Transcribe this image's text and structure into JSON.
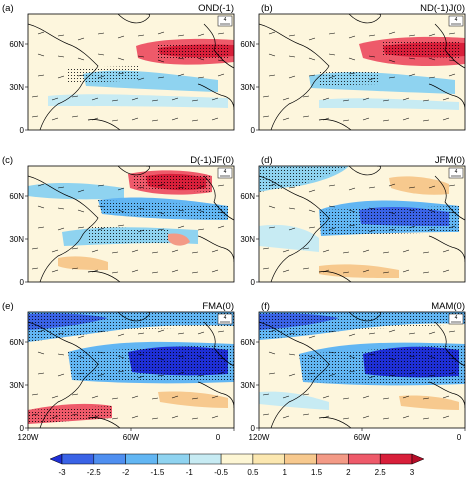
{
  "panels": [
    {
      "letter": "(a)",
      "title": "OND(-1)",
      "vector_ref": "4"
    },
    {
      "letter": "(b)",
      "title": "ND(-1)J(0)",
      "vector_ref": "4"
    },
    {
      "letter": "(c)",
      "title": "D(-1)JF(0)",
      "vector_ref": "4"
    },
    {
      "letter": "(d)",
      "title": "JFM(0)",
      "vector_ref": "4"
    },
    {
      "letter": "(e)",
      "title": "FMA(0)",
      "vector_ref": "4"
    },
    {
      "letter": "(f)",
      "title": "MAM(0)",
      "vector_ref": "4"
    }
  ],
  "y_ticks": [
    "60N",
    "30N",
    "0"
  ],
  "x_ticks": [
    "120W",
    "60W",
    "0"
  ],
  "colorbar": {
    "labels": [
      "-3",
      "-2.5",
      "-2",
      "-1.5",
      "-1",
      "-0.5",
      "0.5",
      "1",
      "1.5",
      "2",
      "2.5",
      "3"
    ],
    "colors": [
      "#1e2fd6",
      "#3a63e6",
      "#4f8ff0",
      "#62b6f3",
      "#8fd3f0",
      "#c7ebf3",
      "#fdf6d4",
      "#fbe7b0",
      "#f7c98e",
      "#f39a86",
      "#ee5a6a",
      "#d81f3a",
      "#b50d28"
    ]
  },
  "colors": {
    "land": "#c9a46e",
    "coast": "#000000"
  }
}
